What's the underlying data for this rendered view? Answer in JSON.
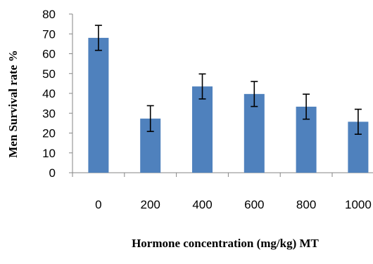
{
  "chart_data": {
    "type": "bar",
    "categories": [
      "0",
      "200",
      "400",
      "600",
      "800",
      "1000"
    ],
    "values": [
      68,
      27.3,
      43.5,
      39.7,
      33.3,
      25.7
    ],
    "error": [
      6.3,
      6.5,
      6.3,
      6.3,
      6.3,
      6.3
    ],
    "title": "",
    "xlabel": "Hormone concentration (mg/kg) MT",
    "ylabel": "Men Survival rate %",
    "ylim": [
      0,
      80
    ],
    "yticks": [
      0,
      10,
      20,
      30,
      40,
      50,
      60,
      70,
      80
    ],
    "grid": false,
    "legend": "none",
    "bar_color": "#4f81bd"
  }
}
